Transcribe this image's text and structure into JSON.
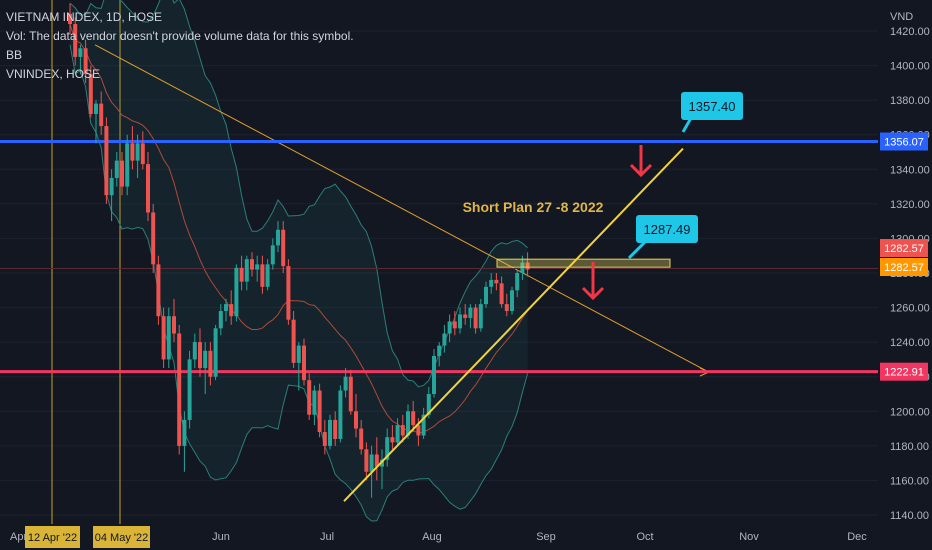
{
  "legend": {
    "symbol": "VIETNAM INDEX, 1D, HOSE",
    "vol_note": "Vol: The data vendor doesn't provide volume data for this symbol.",
    "indicator": "BB",
    "compare": "VNINDEX, HOSE"
  },
  "colors": {
    "background": "#131722",
    "up": "#26a69a",
    "down": "#ef5350",
    "band": "#2a7f78",
    "basis": "#b04a3a",
    "trendline": "#f2d43b",
    "downtrend": "#e0a030",
    "blue_line": "#2962ff",
    "pink_line": "#f23662",
    "callout": "#1ec6e8",
    "arrow": "#f23645",
    "zone": "#e8d25a",
    "vertical": "#c9a227"
  },
  "chart_data": {
    "type": "candlestick",
    "axis_unit": "VND",
    "ylim": [
      1140,
      1425
    ],
    "y_ticks": [
      1140,
      1160,
      1180,
      1200,
      1220,
      1240,
      1260,
      1280,
      1300,
      1320,
      1340,
      1360,
      1380,
      1400,
      1420
    ],
    "x_ticks": [
      "Apr",
      "Jun",
      "Jul",
      "Aug",
      "Sep",
      "Oct",
      "Nov",
      "Dec"
    ],
    "date_markers": [
      "12 Apr '22",
      "04 May '22"
    ],
    "horizontal_lines": [
      {
        "label": "1356.07",
        "value": 1356.07,
        "color": "#2962ff"
      },
      {
        "label": "1222.91",
        "value": 1222.91,
        "color": "#f23662"
      }
    ],
    "price_labels": [
      {
        "label": "1282.57",
        "value": 1285.5,
        "color": "#ef5350"
      },
      {
        "label": "1282.57",
        "value": 1279.5,
        "color": "#ff9800"
      }
    ],
    "callouts": [
      {
        "label": "1357.40",
        "value": 1357.4
      },
      {
        "label": "1287.49",
        "value": 1287.49
      }
    ],
    "annotation": "Short Plan 27 -8 2022",
    "candles_start": "2022-04-11",
    "candles": [
      [
        1430,
        1436,
        1418,
        1424
      ],
      [
        1424,
        1428,
        1400,
        1405
      ],
      [
        1405,
        1412,
        1395,
        1410
      ],
      [
        1410,
        1415,
        1390,
        1395
      ],
      [
        1395,
        1400,
        1370,
        1372
      ],
      [
        1372,
        1380,
        1355,
        1378
      ],
      [
        1378,
        1385,
        1360,
        1365
      ],
      [
        1365,
        1370,
        1320,
        1325
      ],
      [
        1325,
        1340,
        1310,
        1335
      ],
      [
        1335,
        1350,
        1330,
        1345
      ],
      [
        1345,
        1350,
        1325,
        1330
      ],
      [
        1330,
        1360,
        1325,
        1355
      ],
      [
        1355,
        1365,
        1340,
        1345
      ],
      [
        1345,
        1360,
        1335,
        1355
      ],
      [
        1355,
        1362,
        1340,
        1343
      ],
      [
        1343,
        1350,
        1310,
        1315
      ],
      [
        1315,
        1320,
        1280,
        1285
      ],
      [
        1285,
        1290,
        1250,
        1255
      ],
      [
        1255,
        1260,
        1225,
        1230
      ],
      [
        1230,
        1260,
        1225,
        1255
      ],
      [
        1255,
        1265,
        1240,
        1245
      ],
      [
        1245,
        1250,
        1175,
        1180
      ],
      [
        1180,
        1200,
        1165,
        1195
      ],
      [
        1195,
        1235,
        1190,
        1230
      ],
      [
        1230,
        1245,
        1225,
        1240
      ],
      [
        1240,
        1248,
        1220,
        1225
      ],
      [
        1225,
        1240,
        1210,
        1235
      ],
      [
        1235,
        1240,
        1215,
        1220
      ],
      [
        1220,
        1250,
        1218,
        1248
      ],
      [
        1248,
        1262,
        1244,
        1258
      ],
      [
        1258,
        1265,
        1252,
        1262
      ],
      [
        1262,
        1270,
        1250,
        1255
      ],
      [
        1255,
        1285,
        1252,
        1283
      ],
      [
        1283,
        1290,
        1270,
        1275
      ],
      [
        1275,
        1290,
        1270,
        1288
      ],
      [
        1288,
        1292,
        1278,
        1282
      ],
      [
        1282,
        1290,
        1275,
        1285
      ],
      [
        1285,
        1290,
        1268,
        1272
      ],
      [
        1272,
        1288,
        1270,
        1285
      ],
      [
        1285,
        1300,
        1282,
        1296
      ],
      [
        1296,
        1310,
        1292,
        1305
      ],
      [
        1305,
        1310,
        1280,
        1284
      ],
      [
        1284,
        1288,
        1250,
        1253
      ],
      [
        1253,
        1258,
        1225,
        1228
      ],
      [
        1228,
        1240,
        1212,
        1238
      ],
      [
        1238,
        1242,
        1215,
        1218
      ],
      [
        1218,
        1222,
        1195,
        1198
      ],
      [
        1198,
        1215,
        1192,
        1212
      ],
      [
        1212,
        1216,
        1185,
        1188
      ],
      [
        1188,
        1195,
        1175,
        1180
      ],
      [
        1180,
        1198,
        1178,
        1195
      ],
      [
        1195,
        1200,
        1180,
        1184
      ],
      [
        1184,
        1215,
        1182,
        1212
      ],
      [
        1212,
        1225,
        1208,
        1220
      ],
      [
        1220,
        1224,
        1198,
        1200
      ],
      [
        1200,
        1210,
        1185,
        1190
      ],
      [
        1190,
        1195,
        1175,
        1178
      ],
      [
        1178,
        1182,
        1160,
        1165
      ],
      [
        1165,
        1180,
        1150,
        1175
      ],
      [
        1175,
        1185,
        1160,
        1168
      ],
      [
        1168,
        1178,
        1155,
        1172
      ],
      [
        1172,
        1190,
        1168,
        1185
      ],
      [
        1185,
        1192,
        1178,
        1182
      ],
      [
        1182,
        1196,
        1180,
        1192
      ],
      [
        1192,
        1198,
        1182,
        1186
      ],
      [
        1186,
        1204,
        1184,
        1200
      ],
      [
        1200,
        1206,
        1188,
        1192
      ],
      [
        1192,
        1196,
        1180,
        1186
      ],
      [
        1186,
        1202,
        1184,
        1198
      ],
      [
        1198,
        1214,
        1196,
        1210
      ],
      [
        1210,
        1236,
        1208,
        1232
      ],
      [
        1232,
        1240,
        1226,
        1238
      ],
      [
        1238,
        1250,
        1234,
        1245
      ],
      [
        1245,
        1256,
        1240,
        1252
      ],
      [
        1252,
        1258,
        1244,
        1248
      ],
      [
        1248,
        1260,
        1245,
        1256
      ],
      [
        1256,
        1262,
        1250,
        1254
      ],
      [
        1254,
        1262,
        1248,
        1260
      ],
      [
        1260,
        1262,
        1245,
        1248
      ],
      [
        1248,
        1265,
        1246,
        1262
      ],
      [
        1262,
        1275,
        1260,
        1272
      ],
      [
        1272,
        1280,
        1268,
        1276
      ],
      [
        1276,
        1280,
        1270,
        1274
      ],
      [
        1274,
        1278,
        1260,
        1262
      ],
      [
        1262,
        1268,
        1255,
        1258
      ],
      [
        1258,
        1272,
        1256,
        1270
      ],
      [
        1270,
        1282,
        1266,
        1280
      ],
      [
        1280,
        1290,
        1276,
        1286
      ],
      [
        1286,
        1292,
        1278,
        1282
      ]
    ]
  }
}
